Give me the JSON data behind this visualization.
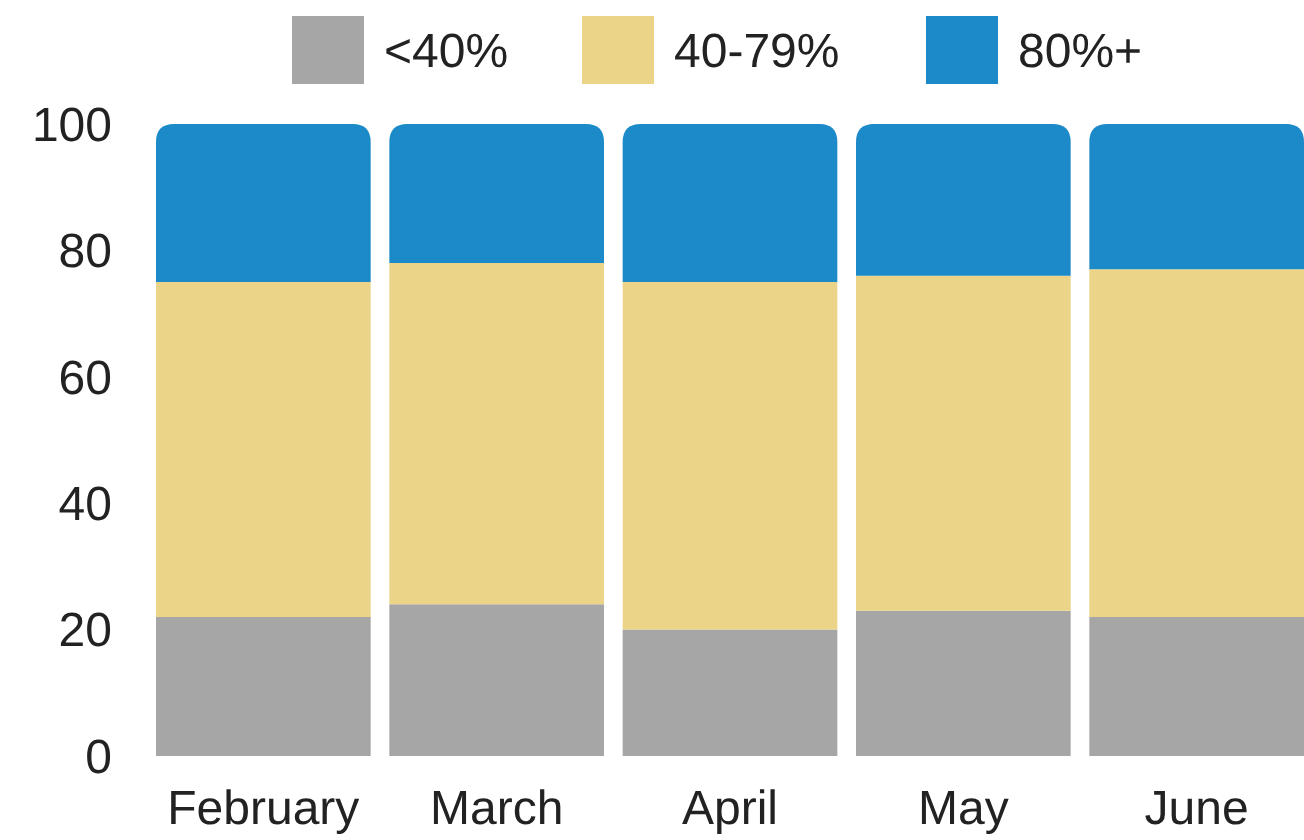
{
  "chart_data": {
    "type": "bar",
    "stacked": true,
    "categories": [
      "February",
      "March",
      "April",
      "May",
      "June"
    ],
    "series": [
      {
        "name": "<40%",
        "color": "#a6a6a6",
        "values": [
          22,
          24,
          20,
          23,
          22
        ]
      },
      {
        "name": "40-79%",
        "color": "#ebd488",
        "values": [
          53,
          54,
          55,
          53,
          55
        ]
      },
      {
        "name": "80%+",
        "color": "#1c8ac9",
        "values": [
          25,
          22,
          25,
          24,
          23
        ]
      }
    ],
    "ylim": [
      0,
      100
    ],
    "yticks": [
      0,
      20,
      40,
      60,
      80,
      100
    ],
    "legend": "top",
    "grid": false
  }
}
